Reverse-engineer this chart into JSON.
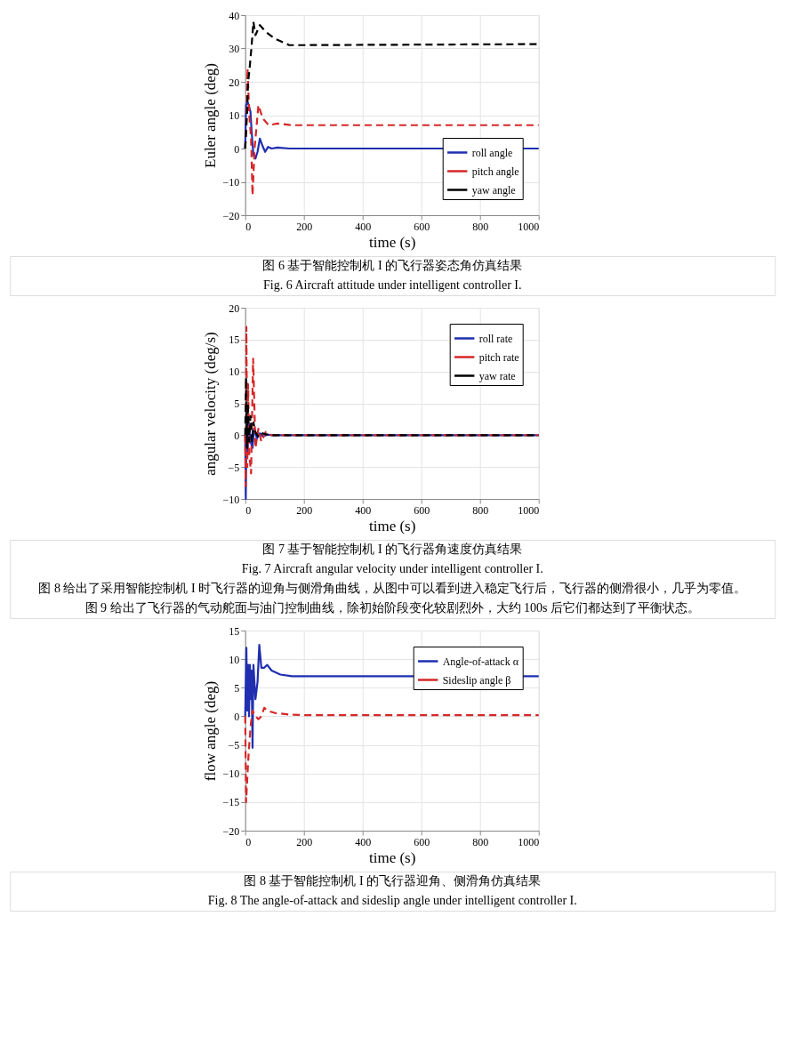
{
  "chart_data": [
    {
      "type": "line",
      "xlabel": "time (s)",
      "ylabel": "Euler angle (deg)",
      "xlim": [
        0,
        1000
      ],
      "xticks": [
        0,
        200,
        400,
        600,
        800,
        1000
      ],
      "ylim": [
        -20,
        40
      ],
      "yticks": [
        -20,
        -10,
        0,
        10,
        20,
        30,
        40
      ],
      "grid": true,
      "legend": "bottom right",
      "series": [
        {
          "name": "roll angle",
          "color": "#1f2fb0",
          "line_style": "solid",
          "x": [
            0,
            3,
            8,
            12,
            18,
            22,
            28,
            35,
            42,
            50,
            58,
            68,
            78,
            90,
            110,
            150,
            200,
            1000
          ],
          "values": [
            0,
            13,
            14,
            13,
            11,
            5,
            -2,
            -3,
            -1,
            3,
            1,
            -1,
            0.5,
            0,
            0.3,
            0,
            0,
            0
          ]
        },
        {
          "name": "pitch angle",
          "color": "#d62728",
          "line_style": "dashed",
          "x": [
            0,
            3,
            8,
            14,
            20,
            25,
            32,
            45,
            60,
            80,
            110,
            160,
            200,
            1000
          ],
          "values": [
            0,
            5,
            24,
            10,
            3,
            -14,
            0,
            13,
            9,
            7,
            7.5,
            7,
            7,
            7
          ]
        },
        {
          "name": "yaw angle",
          "color": "#000000",
          "line_style": "dashed",
          "x": [
            0,
            3,
            6,
            10,
            15,
            22,
            28,
            35,
            50,
            70,
            100,
            150,
            200,
            1000
          ],
          "values": [
            0,
            5,
            10,
            20,
            24,
            31,
            38,
            34,
            37,
            35,
            33,
            31,
            31,
            31.3
          ]
        }
      ],
      "annotations": [
        "图 6  基于智能控制机 I 的飞行器姿态角仿真结果",
        "Fig. 6 Aircraft attitude under intelligent controller I."
      ]
    },
    {
      "type": "line",
      "xlabel": "time (s)",
      "ylabel": "angular velocity (deg/s)",
      "xlim": [
        0,
        1000
      ],
      "xticks": [
        0,
        200,
        400,
        600,
        800,
        1000
      ],
      "ylim": [
        -10,
        20
      ],
      "yticks": [
        -10,
        -5,
        0,
        5,
        10,
        15,
        20
      ],
      "grid": true,
      "legend": "top right",
      "series": [
        {
          "name": "roll rate",
          "color": "#1f2fb0",
          "line_style": "solid",
          "x": [
            0,
            2,
            5,
            8,
            12,
            18,
            25,
            30,
            40,
            50,
            60,
            75,
            90,
            1000
          ],
          "values": [
            0,
            -10,
            4,
            -3,
            2,
            -1,
            -2,
            1,
            -0.5,
            0.3,
            -0.2,
            0.1,
            0,
            0
          ]
        },
        {
          "name": "pitch rate",
          "color": "#d62728",
          "line_style": "dashed",
          "x": [
            0,
            2,
            4,
            7,
            10,
            14,
            20,
            27,
            35,
            45,
            55,
            70,
            90,
            1000
          ],
          "values": [
            0,
            -8,
            17,
            -5,
            8,
            -3,
            -6,
            12,
            -2,
            1,
            -1,
            0.5,
            0,
            0
          ]
        },
        {
          "name": "yaw rate",
          "color": "#000000",
          "line_style": "dashed",
          "x": [
            0,
            3,
            6,
            9,
            13,
            18,
            23,
            28,
            35,
            45,
            60,
            80,
            1000
          ],
          "values": [
            0,
            9,
            -2,
            5,
            -1,
            3,
            -1,
            2,
            0.5,
            -0.3,
            0.3,
            0,
            0
          ]
        }
      ],
      "annotations": [
        "图 7  基于智能控制机 I 的飞行器角速度仿真结果",
        "Fig. 7 Aircraft angular velocity under intelligent controller I.",
        "图 8 给出了采用智能控制机 I 时飞行器的迎角与侧滑角曲线，从图中可以看到进入稳定飞行后，飞行器的侧滑很小，几乎为零值。图 9 给出了飞行器的气动舵面与油门控制曲线，除初始阶段变化较剧烈外，大约 100s 后它们都达到了平衡状态。"
      ]
    },
    {
      "type": "line",
      "xlabel": "time (s)",
      "ylabel": "flow angle (deg)",
      "xlim": [
        0,
        1000
      ],
      "xticks": [
        0,
        200,
        400,
        600,
        800,
        1000
      ],
      "ylim": [
        -20,
        15
      ],
      "yticks": [
        -20,
        -15,
        -10,
        -5,
        0,
        5,
        10,
        15
      ],
      "grid": true,
      "legend": "top right",
      "series": [
        {
          "name": "Angle-of-attack α",
          "color": "#1f2fb0",
          "line_style": "solid",
          "x": [
            0,
            4,
            7,
            10,
            13,
            16,
            19,
            22,
            25,
            28,
            35,
            42,
            48,
            55,
            65,
            75,
            90,
            120,
            160,
            200,
            1000
          ],
          "values": [
            0,
            12,
            1,
            9,
            0,
            9,
            3,
            8,
            -5.5,
            9,
            3,
            6,
            12.5,
            8.5,
            8.5,
            9,
            8,
            7.3,
            7,
            7,
            7
          ]
        },
        {
          "name": "Sideslip angle β",
          "color": "#d62728",
          "line_style": "dashed",
          "x": [
            0,
            3,
            6,
            10,
            15,
            20,
            25,
            35,
            45,
            55,
            65,
            75,
            100,
            150,
            200,
            1000
          ],
          "values": [
            0,
            -15,
            -12,
            -8,
            -4,
            -1,
            1,
            0,
            -0.5,
            0,
            1.5,
            1,
            0.6,
            0.3,
            0.2,
            0.2
          ]
        }
      ],
      "annotations": [
        "图 8  基于智能控制机 I 的飞行器迎角、侧滑角仿真结果",
        "Fig. 8 The angle-of-attack and sideslip angle under intelligent controller I."
      ]
    }
  ]
}
